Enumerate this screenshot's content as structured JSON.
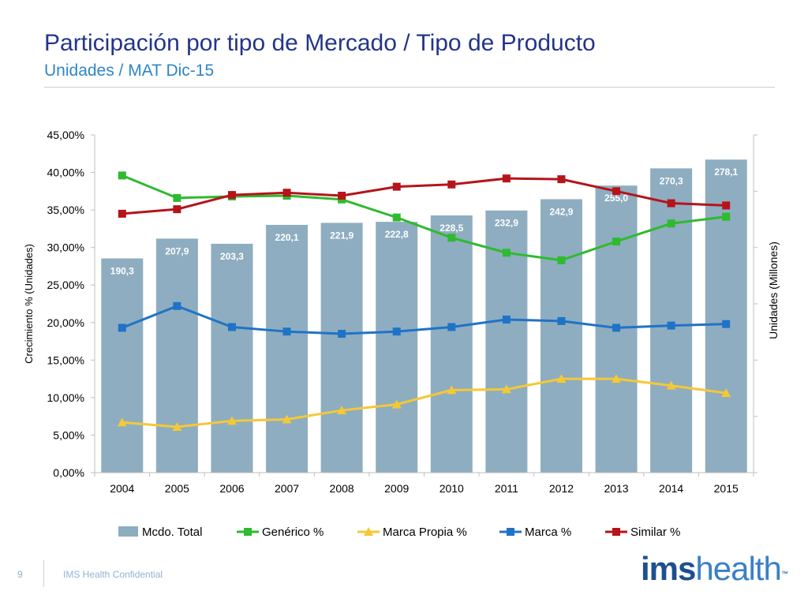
{
  "slide": {
    "title": "Participación por tipo de Mercado / Tipo de Producto",
    "subtitle": "Unidades / MAT Dic-15",
    "page_number": "9",
    "footer_text": "IMS Health Confidential",
    "logo_part1": "ims",
    "logo_part2": "health",
    "logo_tm": "™"
  },
  "chart_data": {
    "type": "bar",
    "categories": [
      "2004",
      "2005",
      "2006",
      "2007",
      "2008",
      "2009",
      "2010",
      "2011",
      "2012",
      "2013",
      "2014",
      "2015"
    ],
    "y_left": {
      "label": "Crecimiento % (Unidades)",
      "range": [
        0,
        45
      ],
      "ticks": [
        0,
        5,
        10,
        15,
        20,
        25,
        30,
        35,
        40,
        45
      ],
      "tick_labels": [
        "0,00%",
        "5,00%",
        "10,00%",
        "15,00%",
        "20,00%",
        "25,00%",
        "30,00%",
        "35,00%",
        "40,00%",
        "45,00%"
      ]
    },
    "y_right": {
      "label": "Unidades (Millones)",
      "range": [
        0,
        300
      ]
    },
    "bars": {
      "name": "Mcdo. Total",
      "color": "#8eadc0",
      "axis": "right",
      "values": [
        190.3,
        207.9,
        203.3,
        220.1,
        221.9,
        222.8,
        228.5,
        232.9,
        242.9,
        255.0,
        270.3,
        278.1
      ],
      "labels": [
        "190,3",
        "207,9",
        "203,3",
        "220,1",
        "221,9",
        "222,8",
        "228,5",
        "232,9",
        "242,9",
        "255,0",
        "270,3",
        "278,1"
      ]
    },
    "series": [
      {
        "name": "Genérico %",
        "color": "#2fba2f",
        "marker": "square",
        "values": [
          39.6,
          36.6,
          36.8,
          36.9,
          36.4,
          34.0,
          31.3,
          29.3,
          28.3,
          30.8,
          33.2,
          34.1
        ]
      },
      {
        "name": "Marca Propia %",
        "color": "#f5c836",
        "marker": "triangle",
        "values": [
          6.7,
          6.1,
          6.9,
          7.1,
          8.3,
          9.1,
          11.0,
          11.1,
          12.5,
          12.5,
          11.6,
          10.6
        ]
      },
      {
        "name": "Marca %",
        "color": "#1f73c7",
        "marker": "square",
        "values": [
          19.3,
          22.2,
          19.4,
          18.8,
          18.5,
          18.8,
          19.4,
          20.4,
          20.2,
          19.3,
          19.6,
          19.8
        ]
      },
      {
        "name": "Similar %",
        "color": "#b5141b",
        "marker": "square",
        "values": [
          34.5,
          35.1,
          37.0,
          37.3,
          36.9,
          38.1,
          38.4,
          39.2,
          39.1,
          37.5,
          35.9,
          35.6
        ]
      }
    ],
    "legend_position": "bottom",
    "grid": false
  }
}
